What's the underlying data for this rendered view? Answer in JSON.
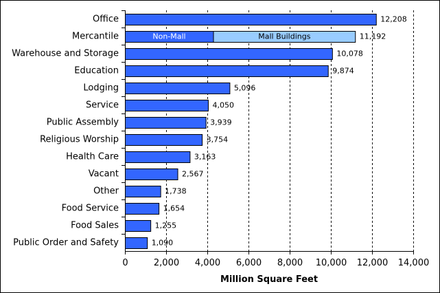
{
  "chart_data": {
    "type": "bar",
    "orientation": "horizontal",
    "categories": [
      "Office",
      "Mercantile",
      "Warehouse and Storage",
      "Education",
      "Lodging",
      "Service",
      "Public Assembly",
      "Religious Worship",
      "Health Care",
      "Vacant",
      "Other",
      "Food Service",
      "Food Sales",
      "Public Order and Safety"
    ],
    "values": [
      12208,
      11192,
      10078,
      9874,
      5096,
      4050,
      3939,
      3754,
      3163,
      2567,
      1738,
      1654,
      1255,
      1090
    ],
    "value_labels": [
      "12,208",
      "11,192",
      "10,078",
      "9,874",
      "5,096",
      "4,050",
      "3,939",
      "3,754",
      "3,163",
      "2,567",
      "1,738",
      "1,654",
      "1,255",
      "1,090"
    ],
    "mercantile_breakdown": {
      "category": "Mercantile",
      "segments": [
        {
          "name": "Non-Mall",
          "value": 4300
        },
        {
          "name": "Mall Buildings",
          "value": 6892
        }
      ]
    },
    "xlabel": "Million Square Feet",
    "xlim": [
      0,
      14000
    ],
    "xticks": [
      0,
      2000,
      4000,
      6000,
      8000,
      10000,
      12000,
      14000
    ],
    "xtick_labels": [
      "0",
      "2,000",
      "4,000",
      "6,000",
      "8,000",
      "10,000",
      "12,000",
      "14,000"
    ],
    "grid": "vertical dashed",
    "colors": {
      "bar": "#3366ff",
      "mall_segment": "#99ccff",
      "bar_edge": "#000000",
      "grid": "#000000"
    }
  }
}
